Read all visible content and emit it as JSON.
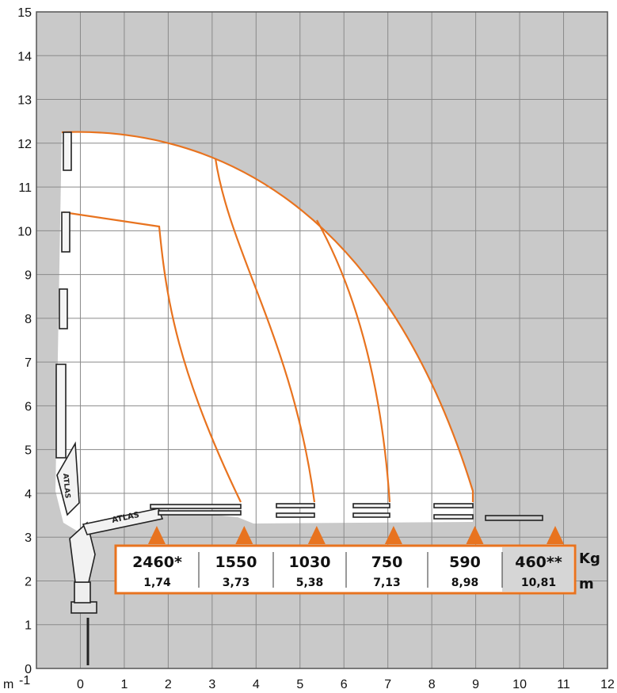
{
  "chart_data": {
    "type": "load-chart",
    "axis_unit": "m",
    "x_ticks": [
      "-1",
      "0",
      "1",
      "2",
      "3",
      "4",
      "5",
      "6",
      "7",
      "8",
      "9",
      "10",
      "11",
      "12"
    ],
    "y_ticks": [
      "0",
      "1",
      "2",
      "3",
      "4",
      "5",
      "6",
      "7",
      "8",
      "9",
      "10",
      "11",
      "12",
      "13",
      "14",
      "15"
    ],
    "xlim": [
      -1,
      12
    ],
    "ylim": [
      0,
      15
    ],
    "grid": true,
    "load_unit": "Kg",
    "distance_unit": "m",
    "load_points": [
      {
        "load": "2460*",
        "distance": "1,74",
        "x": 1.74
      },
      {
        "load": "1550",
        "distance": "3,73",
        "x": 3.73
      },
      {
        "load": "1030",
        "distance": "5,38",
        "x": 5.38
      },
      {
        "load": "750",
        "distance": "7,13",
        "x": 7.13
      },
      {
        "load": "590",
        "distance": "8,98",
        "x": 8.98
      },
      {
        "load": "460**",
        "distance": "10,81",
        "x": 10.81
      }
    ],
    "crane_label": "ATLAS",
    "colors": {
      "accent": "#e8731f",
      "grid_bg": "#c9c9c9",
      "envelope": "#ffffff"
    }
  }
}
